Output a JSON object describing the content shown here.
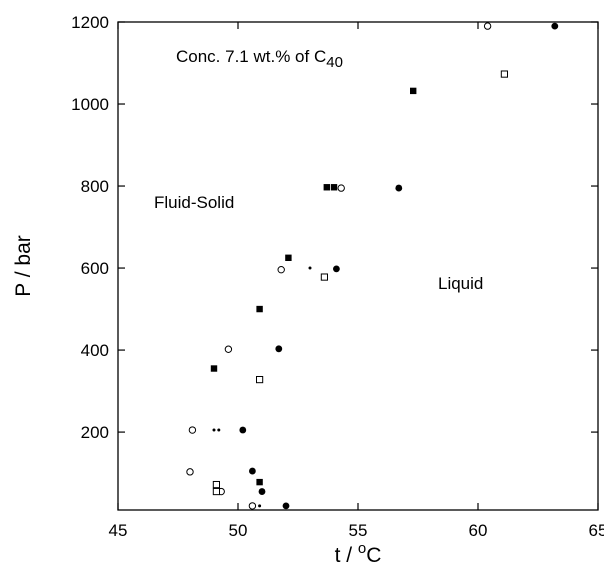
{
  "chart_data": {
    "type": "scatter",
    "title": "",
    "xlabel": {
      "base": "t / ",
      "sup": "o",
      "rest": "C"
    },
    "ylabel": "P / bar",
    "xlim": [
      45,
      65
    ],
    "ylim": [
      10,
      1200
    ],
    "x_ticks": [
      45,
      50,
      55,
      60,
      65
    ],
    "y_ticks": [
      200,
      400,
      600,
      800,
      1000,
      1200
    ],
    "grid": false,
    "legend": "none",
    "annotations": {
      "concentration": {
        "base": "Conc. 7.1 wt.% of C",
        "sub": "40"
      },
      "fluid_solid": "Fluid-Solid",
      "liquid": "Liquid"
    },
    "series": [
      {
        "marker": "filled-circle",
        "points": [
          [
            63.2,
            1190
          ],
          [
            56.7,
            795
          ],
          [
            54.1,
            598
          ],
          [
            51.7,
            403
          ],
          [
            50.2,
            205
          ],
          [
            50.6,
            105
          ],
          [
            51.0,
            55
          ],
          [
            52.0,
            20
          ]
        ]
      },
      {
        "marker": "open-circle",
        "points": [
          [
            60.4,
            1190
          ],
          [
            54.3,
            795
          ],
          [
            51.8,
            596
          ],
          [
            49.6,
            402
          ],
          [
            48.1,
            205
          ],
          [
            48.0,
            103
          ],
          [
            49.3,
            55
          ],
          [
            50.6,
            20
          ]
        ]
      },
      {
        "marker": "filled-square",
        "points": [
          [
            57.3,
            1032
          ],
          [
            54.0,
            797
          ],
          [
            53.7,
            797
          ],
          [
            52.1,
            625
          ],
          [
            50.9,
            500
          ],
          [
            49.0,
            355
          ],
          [
            50.9,
            78
          ]
        ]
      },
      {
        "marker": "open-square",
        "points": [
          [
            61.1,
            1073
          ],
          [
            53.6,
            578
          ],
          [
            50.9,
            328
          ],
          [
            49.1,
            72
          ],
          [
            49.1,
            55
          ]
        ]
      },
      {
        "marker": "small-dot",
        "points": [
          [
            53.0,
            600
          ],
          [
            49.0,
            205
          ],
          [
            49.2,
            205
          ],
          [
            50.9,
            20
          ]
        ]
      }
    ]
  }
}
